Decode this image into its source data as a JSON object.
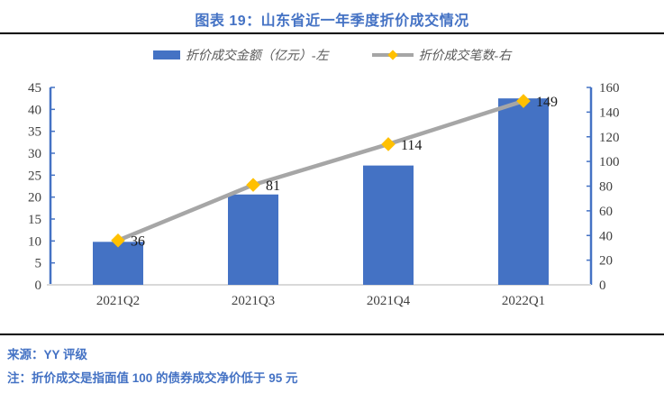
{
  "figure": {
    "title": "图表 19：山东省近一年季度折价成交情况"
  },
  "footer": {
    "source": "来源：YY 评级",
    "note": "注：折价成交是指面值 100 的债券成交净价低于 95 元"
  },
  "colors": {
    "accent_blue": "#4472C4",
    "bar_blue": "#4472C4",
    "line_gray": "#A6A6A6",
    "marker_gold": "#FFC000",
    "baseline_gray": "#D9D9D9",
    "axis_line_blue": "#4472C4",
    "tick_text": "#404040",
    "data_label_text": "#1a1a1a",
    "divider_black": "#000000"
  },
  "chart_data": {
    "type": "combo-bar-line",
    "title": "图表 19：山东省近一年季度折价成交情况",
    "categories": [
      "2021Q2",
      "2021Q3",
      "2021Q4",
      "2022Q1"
    ],
    "series": [
      {
        "name": "折价成交金额（亿元）-左",
        "type": "bar",
        "axis": "left",
        "color": "#4472C4",
        "values": [
          9.8,
          20.6,
          27.2,
          42.5
        ]
      },
      {
        "name": "折价成交笔数-右",
        "type": "line",
        "axis": "right",
        "color": "#A6A6A6",
        "marker": "diamond",
        "marker_color": "#FFC000",
        "values": [
          36,
          81,
          114,
          149
        ],
        "point_labels": [
          "36",
          "81",
          "114",
          "149"
        ]
      }
    ],
    "axes": {
      "left": {
        "min": 0,
        "max": 45,
        "step": 5,
        "ticks": [
          0,
          5,
          10,
          15,
          20,
          25,
          30,
          35,
          40,
          45
        ]
      },
      "right": {
        "min": 0,
        "max": 160,
        "step": 20,
        "ticks": [
          0,
          20,
          40,
          60,
          80,
          100,
          120,
          140,
          160
        ]
      }
    },
    "grid": false,
    "legend_position": "top"
  }
}
